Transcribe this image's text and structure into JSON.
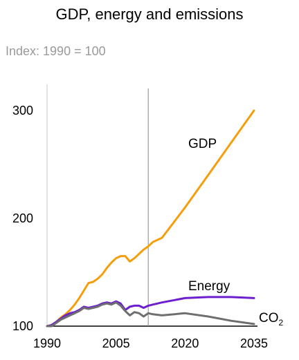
{
  "chart_data": {
    "type": "line",
    "title": "GDP, energy and emissions",
    "subtitle": "Index: 1990 = 100",
    "xlim": [
      1990,
      2035
    ],
    "ylim": [
      100,
      320
    ],
    "x_ticks": [
      "1990",
      "2005",
      "2020",
      "2035"
    ],
    "y_ticks": [
      "100",
      "200",
      "300"
    ],
    "projection_start": 2012,
    "series": [
      {
        "name": "GDP",
        "color": "#f59e0b",
        "x": [
          1990,
          1991,
          1992,
          1993,
          1994,
          1995,
          1996,
          1997,
          1998,
          1999,
          2000,
          2001,
          2002,
          2003,
          2004,
          2005,
          2006,
          2007,
          2008,
          2009,
          2010,
          2011,
          2012,
          2013,
          2015,
          2020,
          2025,
          2030,
          2035
        ],
        "values": [
          100,
          101,
          104,
          108,
          111,
          115,
          120,
          126,
          133,
          140,
          141,
          144,
          148,
          154,
          159,
          163,
          165,
          165,
          160,
          163,
          167,
          171,
          174,
          178,
          182,
          210,
          240,
          270,
          300
        ]
      },
      {
        "name": "Energy",
        "color": "#6d1fd0",
        "x": [
          1990,
          1991,
          1992,
          1993,
          1994,
          1995,
          1996,
          1997,
          1998,
          1999,
          2000,
          2001,
          2002,
          2003,
          2004,
          2005,
          2006,
          2007,
          2008,
          2009,
          2010,
          2011,
          2012,
          2013,
          2015,
          2020,
          2025,
          2030,
          2035
        ],
        "values": [
          100,
          101,
          104,
          107,
          110,
          112,
          113,
          115,
          118,
          117,
          118,
          119,
          121,
          122,
          121,
          123,
          121,
          115,
          118,
          119,
          119,
          117,
          119,
          120,
          122,
          126,
          127,
          127,
          126
        ]
      },
      {
        "name": "CO",
        "name_subscript": "2",
        "color": "#6e6e6e",
        "x": [
          1990,
          1991,
          1992,
          1993,
          1994,
          1995,
          1996,
          1997,
          1998,
          1999,
          2000,
          2001,
          2002,
          2003,
          2004,
          2005,
          2006,
          2007,
          2008,
          2009,
          2010,
          2011,
          2012,
          2013,
          2015,
          2020,
          2025,
          2030,
          2035
        ],
        "values": [
          100,
          100,
          103,
          106,
          108,
          110,
          112,
          114,
          117,
          116,
          117,
          118,
          120,
          121,
          120,
          122,
          119,
          114,
          110,
          113,
          112,
          109,
          112,
          111,
          110,
          112,
          109,
          105,
          102
        ]
      }
    ]
  }
}
